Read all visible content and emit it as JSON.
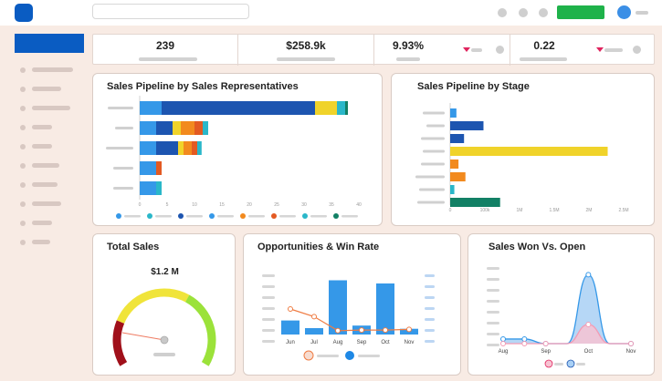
{
  "kpis": [
    {
      "value": "239"
    },
    {
      "value": "$258.9k"
    },
    {
      "value": "9.93%"
    },
    {
      "value": "0.22"
    }
  ],
  "cards": {
    "pipeline_reps": {
      "title": "Sales Pipeline by Sales Representatives"
    },
    "pipeline_stage": {
      "title": "Sales Pipeline by Stage"
    },
    "total_sales": {
      "title": "Total Sales",
      "value": "$1.2 M"
    },
    "opportunities": {
      "title": "Opportunities & Win Rate"
    },
    "won_open": {
      "title": "Sales Won Vs. Open"
    }
  },
  "colors": {
    "blue_light": "#3598e8",
    "blue_dark": "#1d55b0",
    "yellow": "#f0d32a",
    "orange": "#f28a1e",
    "teal": "#2ab7c9",
    "green_dark": "#128065",
    "pink": "#f39bb4",
    "accent": "#0a5cc2"
  },
  "chart_data": [
    {
      "type": "bar",
      "orientation": "horizontal",
      "stacked": true,
      "title": "Sales Pipeline by Sales Representatives",
      "x_ticks": [
        "0",
        "5",
        "10",
        "15",
        "20",
        "25",
        "30",
        "35",
        "40"
      ],
      "xlim": [
        0,
        40
      ],
      "categories": [
        "",
        "",
        "",
        "",
        ""
      ],
      "series": [
        {
          "color": "#3598e8",
          "values": [
            4,
            3,
            3,
            3,
            3
          ]
        },
        {
          "color": "#1d55b0",
          "values": [
            28,
            3,
            4,
            0,
            0
          ]
        },
        {
          "color": "#f0d32a",
          "values": [
            4,
            1.5,
            1,
            0,
            0
          ]
        },
        {
          "color": "#f28a1e",
          "values": [
            0,
            2.5,
            1.5,
            0,
            0
          ]
        },
        {
          "color": "#e35a22",
          "values": [
            0,
            1.5,
            1,
            1,
            0
          ]
        },
        {
          "color": "#2ab7c9",
          "values": [
            1.5,
            1,
            0.8,
            0,
            1
          ]
        },
        {
          "color": "#128065",
          "values": [
            0.5,
            0,
            0,
            0,
            0
          ]
        }
      ]
    },
    {
      "type": "bar",
      "orientation": "horizontal",
      "title": "Sales Pipeline by Stage",
      "x_ticks": [
        "0",
        "100k",
        "1M",
        "1.5M",
        "2M",
        "2.5M"
      ],
      "xlim": [
        0,
        2.5
      ],
      "categories": [
        "",
        "",
        "",
        "",
        "",
        "",
        "",
        ""
      ],
      "values": [
        0.09,
        0.48,
        0.2,
        2.27,
        0.12,
        0.22,
        0.06,
        0.72
      ],
      "colors": [
        "#3598e8",
        "#1d55b0",
        "#1d55b0",
        "#f0d32a",
        "#f28a1e",
        "#f28a1e",
        "#2ab7c9",
        "#128065"
      ]
    },
    {
      "type": "gauge",
      "title": "Total Sales",
      "value_label": "$1.2 M",
      "value_fraction": 0.4
    },
    {
      "type": "bar",
      "title": "Opportunities & Win Rate",
      "categories": [
        "Jun",
        "Jul",
        "Aug",
        "Sep",
        "Oct",
        "Nov"
      ],
      "values": [
        22,
        10,
        85,
        14,
        80,
        9
      ],
      "line": [
        40,
        28,
        6,
        7,
        7,
        8
      ],
      "ylim": [
        0,
        100
      ]
    },
    {
      "type": "area",
      "title": "Sales Won Vs. Open",
      "categories": [
        "Aug",
        "",
        "Sep",
        "",
        "Oct",
        "",
        "Nov"
      ],
      "series": [
        {
          "color": "#3598e8",
          "values": [
            6,
            6,
            0,
            0,
            90,
            0,
            0
          ]
        },
        {
          "color": "#f39bb4",
          "values": [
            0,
            0,
            0,
            0,
            25,
            0,
            0
          ]
        }
      ],
      "ylim": [
        0,
        100
      ]
    }
  ]
}
